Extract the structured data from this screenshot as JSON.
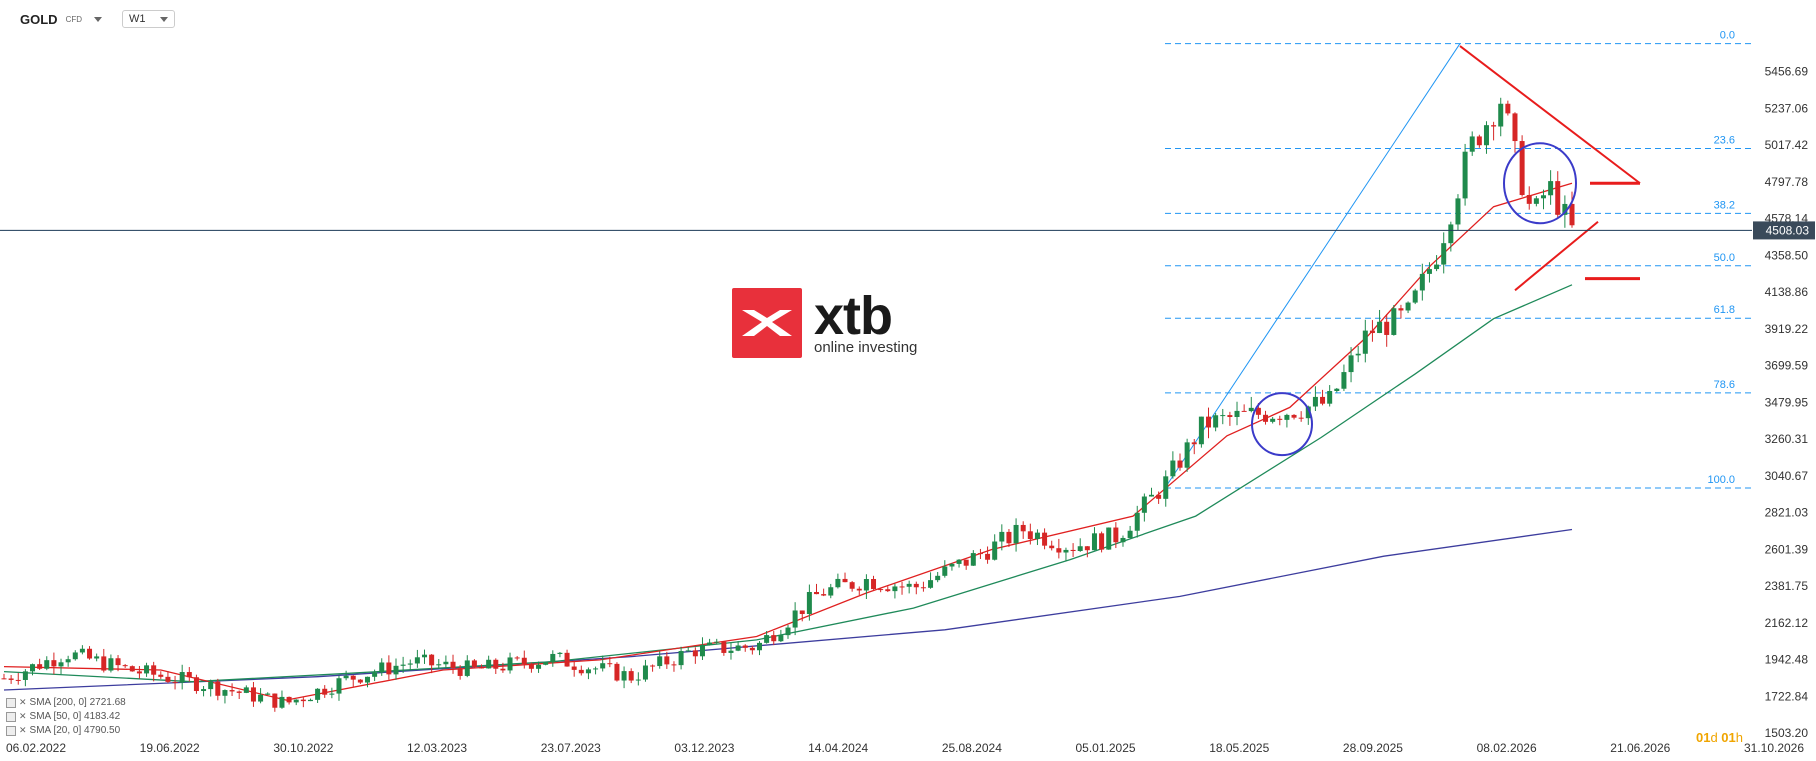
{
  "header": {
    "symbol": "GOLD",
    "symbol_type": "CFD",
    "timeframe": "W1"
  },
  "logo": {
    "name": "xtb",
    "tagline": "online investing"
  },
  "timer": {
    "days": "01",
    "days_unit": "d",
    "hours": "01",
    "hours_unit": "h"
  },
  "legend": [
    {
      "label": "SMA [200, 0] 2721.68",
      "color": "#3d3d9e"
    },
    {
      "label": "SMA [50, 0] 4183.42",
      "color": "#1f8a5a"
    },
    {
      "label": "SMA [20, 0] 4790.50",
      "color": "#e02020"
    }
  ],
  "colors": {
    "up": "#1f8a4c",
    "down": "#d62626",
    "fib": "#2196f3",
    "price_line": "#1c3a57",
    "badge": "#3a4a5a",
    "pattern": "#e81c1c",
    "circle": "#3b3bc9"
  },
  "chart_data": {
    "type": "candlestick",
    "x_tick_labels": [
      "06.02.2022",
      "19.06.2022",
      "30.10.2022",
      "12.03.2023",
      "23.07.2023",
      "03.12.2023",
      "14.04.2024",
      "25.08.2024",
      "05.01.2025",
      "18.05.2025",
      "28.09.2025",
      "08.02.2026",
      "21.06.2026",
      "31.10.2026"
    ],
    "y_tick_labels": [
      "5456.69",
      "5237.06",
      "5017.42",
      "4797.78",
      "4578.14",
      "4358.50",
      "4138.86",
      "3919.22",
      "3699.59",
      "3479.95",
      "3260.31",
      "3040.67",
      "2821.03",
      "2601.39",
      "2381.75",
      "2162.12",
      "1942.48",
      "1722.84",
      "1503.20"
    ],
    "ylim": [
      1503.2,
      5676.33
    ],
    "current_price": "4508.03",
    "fibonacci": {
      "high": 5625,
      "low": 2968,
      "levels": [
        {
          "label": "0.0",
          "ratio": 0.0
        },
        {
          "label": "23.6",
          "ratio": 0.236
        },
        {
          "label": "38.2",
          "ratio": 0.382
        },
        {
          "label": "50.0",
          "ratio": 0.5
        },
        {
          "label": "61.8",
          "ratio": 0.618
        },
        {
          "label": "78.6",
          "ratio": 0.786
        },
        {
          "label": "100.0",
          "ratio": 1.0
        }
      ]
    },
    "sma200_points": [
      [
        0,
        1760
      ],
      [
        0.2,
        1840
      ],
      [
        0.4,
        1960
      ],
      [
        0.6,
        2120
      ],
      [
        0.75,
        2320
      ],
      [
        0.88,
        2560
      ],
      [
        1,
        2720
      ]
    ],
    "sma50_points": [
      [
        0,
        1870
      ],
      [
        0.12,
        1810
      ],
      [
        0.22,
        1860
      ],
      [
        0.35,
        1930
      ],
      [
        0.48,
        2060
      ],
      [
        0.58,
        2250
      ],
      [
        0.68,
        2540
      ],
      [
        0.76,
        2800
      ],
      [
        0.84,
        3270
      ],
      [
        0.9,
        3650
      ],
      [
        0.95,
        3980
      ],
      [
        1,
        4183
      ]
    ],
    "sma20_points": [
      [
        0,
        1900
      ],
      [
        0.1,
        1880
      ],
      [
        0.18,
        1700
      ],
      [
        0.28,
        1880
      ],
      [
        0.38,
        1940
      ],
      [
        0.48,
        2080
      ],
      [
        0.55,
        2340
      ],
      [
        0.63,
        2600
      ],
      [
        0.72,
        2800
      ],
      [
        0.78,
        3280
      ],
      [
        0.82,
        3450
      ],
      [
        0.87,
        3880
      ],
      [
        0.91,
        4300
      ],
      [
        0.95,
        4650
      ],
      [
        1,
        4790
      ]
    ],
    "candle_anchors": [
      [
        0,
        1830
      ],
      [
        0.04,
        1980
      ],
      [
        0.08,
        1880
      ],
      [
        0.13,
        1790
      ],
      [
        0.18,
        1680
      ],
      [
        0.22,
        1830
      ],
      [
        0.26,
        1930
      ],
      [
        0.3,
        1880
      ],
      [
        0.35,
        1950
      ],
      [
        0.4,
        1840
      ],
      [
        0.44,
        2000
      ],
      [
        0.48,
        2020
      ],
      [
        0.52,
        2340
      ],
      [
        0.55,
        2420
      ],
      [
        0.58,
        2370
      ],
      [
        0.62,
        2560
      ],
      [
        0.65,
        2720
      ],
      [
        0.68,
        2620
      ],
      [
        0.71,
        2680
      ],
      [
        0.74,
        2990
      ],
      [
        0.765,
        3350
      ],
      [
        0.79,
        3400
      ],
      [
        0.82,
        3430
      ],
      [
        0.845,
        3480
      ],
      [
        0.87,
        3900
      ],
      [
        0.895,
        4000
      ],
      [
        0.915,
        4400
      ],
      [
        0.935,
        5000
      ],
      [
        0.955,
        5300
      ],
      [
        0.965,
        4900
      ],
      [
        0.975,
        4580
      ],
      [
        0.985,
        4780
      ],
      [
        1,
        4508
      ]
    ]
  }
}
